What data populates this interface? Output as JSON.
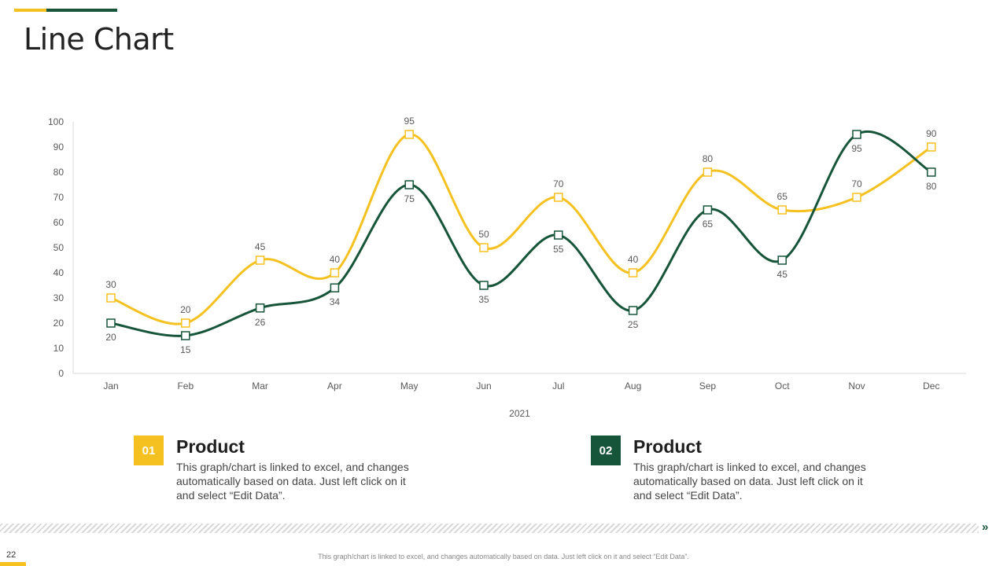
{
  "colors": {
    "yellow": "#f5c121",
    "green": "#17553a"
  },
  "page": {
    "title": "Line Chart",
    "page_number": "22",
    "footer": "This graph/chart is linked to excel, and changes automatically based on data. Just left click on it and select “Edit Data”."
  },
  "legend": [
    {
      "number": "01",
      "title": "Product",
      "text": "This graph/chart is linked to excel, and changes automatically based on data. Just left click on it and select “Edit Data”."
    },
    {
      "number": "02",
      "title": "Product",
      "text": "This graph/chart is linked to excel, and changes automatically based on data. Just left click on it and select “Edit Data”."
    }
  ],
  "chart_data": {
    "type": "line",
    "title": "",
    "xlabel": "2021",
    "ylabel": "",
    "ylim": [
      0,
      100
    ],
    "yticks": [
      0,
      10,
      20,
      30,
      40,
      50,
      60,
      70,
      80,
      90,
      100
    ],
    "categories": [
      "Jan",
      "Feb",
      "Mar",
      "Apr",
      "May",
      "Jun",
      "Jul",
      "Aug",
      "Sep",
      "Oct",
      "Nov",
      "Dec"
    ],
    "series": [
      {
        "name": "Product 01",
        "color": "#f5c121",
        "values": [
          30,
          20,
          45,
          40,
          95,
          50,
          70,
          40,
          80,
          65,
          70,
          90
        ],
        "label_position": "above"
      },
      {
        "name": "Product 02",
        "color": "#17553a",
        "values": [
          20,
          15,
          26,
          34,
          75,
          35,
          55,
          25,
          65,
          45,
          95,
          80
        ],
        "label_position": "below"
      }
    ]
  }
}
